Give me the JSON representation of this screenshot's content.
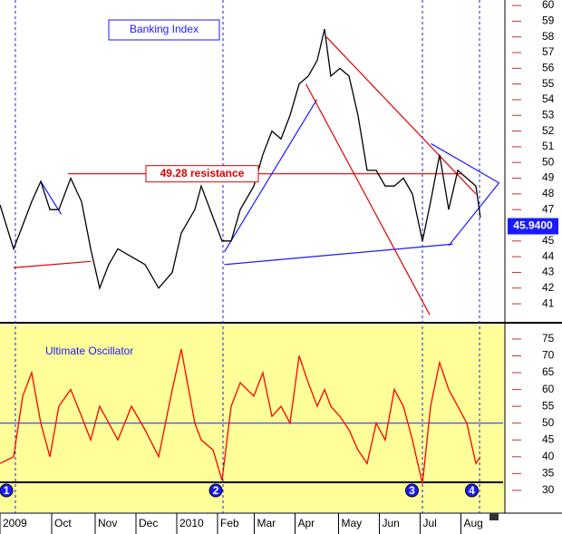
{
  "chart_data": [
    {
      "type": "line",
      "title": "Banking Index",
      "x": [
        0,
        10,
        16.7,
        23.3,
        30,
        36.7,
        43.3,
        52,
        60,
        66.7,
        73.3,
        80,
        86.7,
        96.7,
        106.7,
        116.7,
        126.7,
        133.3,
        143.3,
        148,
        156.7,
        163.3,
        170,
        176.7,
        186.7,
        193.3,
        200,
        206.7,
        213.3,
        220,
        226.7,
        233.3,
        238.7,
        243.3,
        250,
        256.7,
        263.3,
        270,
        276.7,
        283.3,
        290,
        296.7,
        303.3,
        310.7,
        316.7,
        323.3,
        330,
        336.7,
        343.3,
        350,
        353.3
      ],
      "series": [
        {
          "name": "Banking Index",
          "color": "#000000",
          "values": [
            47.3,
            44.5,
            46,
            47.5,
            48.8,
            47,
            47,
            49,
            47.5,
            44.5,
            42,
            43.5,
            44.5,
            44,
            43.5,
            42,
            43,
            45.5,
            47,
            48.5,
            46.5,
            45,
            45,
            47,
            48.5,
            50.5,
            52,
            51.5,
            53,
            55,
            55.5,
            56.5,
            58.5,
            55.5,
            56,
            55.5,
            53,
            49.5,
            49.5,
            48.5,
            48.5,
            49,
            48,
            45,
            47.5,
            50.5,
            47,
            49.5,
            49,
            48.5,
            46.5
          ]
        }
      ],
      "trendlines": [
        {
          "color": "#e00000",
          "x": [
            10,
            67
          ],
          "y": [
            43.3,
            43.7
          ]
        },
        {
          "color": "#1a1aff",
          "x": [
            30,
            45
          ],
          "y": [
            48.8,
            46.7
          ]
        },
        {
          "color": "#e00000",
          "x": [
            50,
            340
          ],
          "y": [
            49.28,
            49.28
          ]
        },
        {
          "color": "#1a1aff",
          "x": [
            165,
            233
          ],
          "y": [
            44.3,
            54
          ]
        },
        {
          "color": "#1a1aff",
          "x": [
            165,
            333
          ],
          "y": [
            43.5,
            44.8
          ]
        },
        {
          "color": "#e00000",
          "x": [
            240,
            350
          ],
          "y": [
            58,
            48
          ]
        },
        {
          "color": "#e00000",
          "x": [
            225,
            316
          ],
          "y": [
            55,
            40.3
          ]
        },
        {
          "color": "#1a1aff",
          "x": [
            317,
            367,
            330
          ],
          "y": [
            51.2,
            48.7,
            44.7
          ]
        }
      ],
      "annotations": [
        {
          "text": "49.28 resistance",
          "x": 50,
          "y": 49.28
        }
      ],
      "last_price": {
        "value": 45.94,
        "label": "45.9400"
      },
      "event_lines": [
        11.3,
        164,
        310.7,
        352.7
      ],
      "xlim": [
        0,
        370
      ],
      "ylim": [
        39.85,
        60.35
      ],
      "yticks": [
        41,
        42,
        43,
        44,
        45,
        46,
        47,
        48,
        49,
        50,
        51,
        52,
        53,
        54,
        55,
        56,
        57,
        58,
        59,
        60
      ]
    },
    {
      "type": "line",
      "title": "Ultimate Oscillator",
      "x": [
        0,
        10,
        16.7,
        23.3,
        30,
        36.7,
        43.3,
        52,
        60,
        66.7,
        73.3,
        80,
        86.7,
        96.7,
        106.7,
        116.7,
        126.7,
        133.3,
        143.3,
        148,
        156.7,
        163.3,
        170,
        176.7,
        186.7,
        193.3,
        200,
        206.7,
        213.3,
        220,
        226.7,
        233.3,
        238.7,
        243.3,
        250,
        256.7,
        263.3,
        270,
        276.7,
        283.3,
        290,
        296.7,
        303.3,
        310.7,
        316.7,
        323.3,
        330,
        336.7,
        343.3,
        350,
        353.3
      ],
      "series": [
        {
          "name": "Ultimate Oscillator",
          "color": "#ff0000",
          "values": [
            38,
            40,
            58,
            65,
            50,
            40,
            55,
            60,
            52,
            45,
            55,
            50,
            45,
            55,
            48,
            40,
            60,
            72,
            50,
            45,
            42,
            33,
            55,
            62,
            58,
            65,
            52,
            55,
            50,
            70,
            62,
            55,
            60,
            55,
            52,
            48,
            42,
            38,
            50,
            45,
            60,
            55,
            45,
            32,
            55,
            68,
            60,
            55,
            50,
            38,
            40
          ]
        }
      ],
      "hlines": [
        {
          "value": 50,
          "color": "#1a1aff"
        },
        {
          "value": 32.4,
          "color": "#000000"
        }
      ],
      "markers": [
        {
          "x": 4.7,
          "label": "1"
        },
        {
          "x": 158.7,
          "label": "2"
        },
        {
          "x": 303,
          "label": "3"
        },
        {
          "x": 347,
          "label": "4"
        }
      ],
      "xlim": [
        0,
        370
      ],
      "ylim": [
        23.5,
        79.3
      ],
      "yticks": [
        30,
        35,
        40,
        45,
        50,
        55,
        60,
        65,
        70,
        75
      ],
      "xticks": [
        {
          "value": 0,
          "label": "2009"
        },
        {
          "value": 38,
          "label": "Oct"
        },
        {
          "value": 70,
          "label": "Nov"
        },
        {
          "value": 100,
          "label": "Dec"
        },
        {
          "value": 130,
          "label": "2010"
        },
        {
          "value": 160,
          "label": "Feb"
        },
        {
          "value": 187,
          "label": "Mar"
        },
        {
          "value": 217,
          "label": "Apr"
        },
        {
          "value": 249,
          "label": "May"
        },
        {
          "value": 279,
          "label": "Jun"
        },
        {
          "value": 309,
          "label": "Jul"
        },
        {
          "value": 339,
          "label": "Aug"
        }
      ]
    }
  ]
}
